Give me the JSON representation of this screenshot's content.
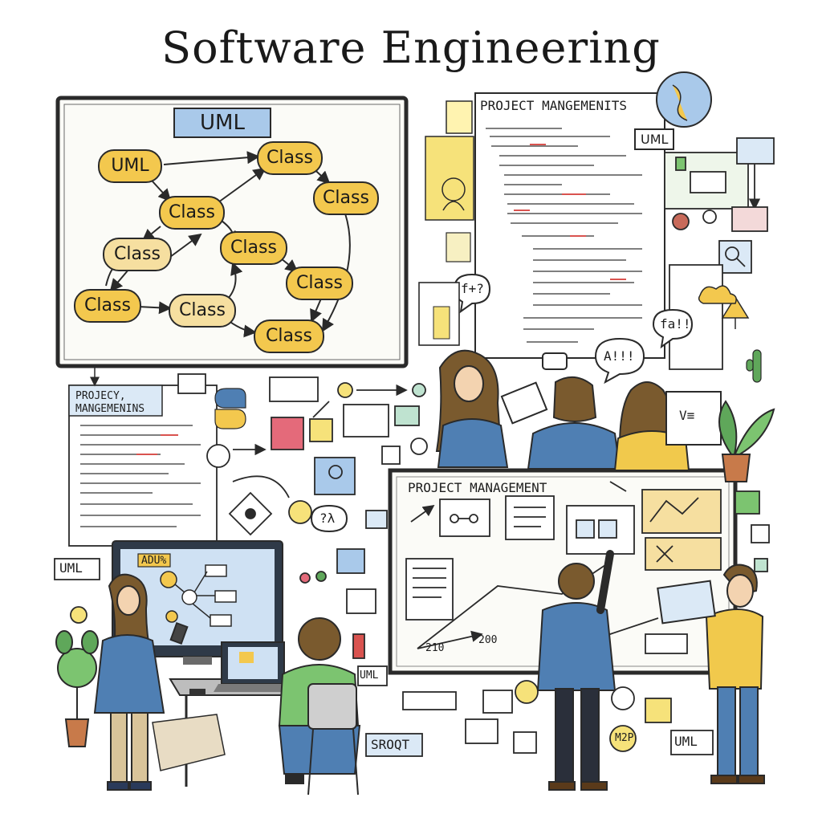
{
  "title": "Software Engineering",
  "uml_board": {
    "header": "UML",
    "nodes": [
      "UML",
      "Class",
      "Class",
      "Class",
      "Class",
      "Class",
      "Class",
      "Class",
      "Class",
      "Class"
    ]
  },
  "labels": {
    "pm_document": "PROJECT MANGEMENITS",
    "pm_notepad_line1": "PROJECY,",
    "pm_notepad_line2": "MANGEMENINS",
    "pm_whiteboard": "PROJECT MANAGEMENT",
    "uml_top_right": "UML",
    "uml_left": "UML",
    "uml_bottom_note": "UML",
    "uml_bottom_right": "UML",
    "bubble_fxq": "f+?",
    "bubble_alarm": "A!!!",
    "bubble_fa": "fa!!",
    "bubble_zl": "?λ",
    "note_sroqt": "SROQT",
    "badge_m2p": "M2P",
    "screen_tag": "ADU%",
    "axis_a": "210",
    "axis_b": "200",
    "ve_sign": "V≡"
  },
  "colors": {
    "yellow_node": "#f3c84e",
    "pale_node": "#f6dfa0",
    "blue_header": "#a9c9ea",
    "shirt_blue": "#4f7fb3",
    "shirt_yellow": "#f1c94c",
    "shirt_green": "#7cc470",
    "plant_green": "#5fa75a",
    "hair_brown": "#7a5a2e"
  }
}
